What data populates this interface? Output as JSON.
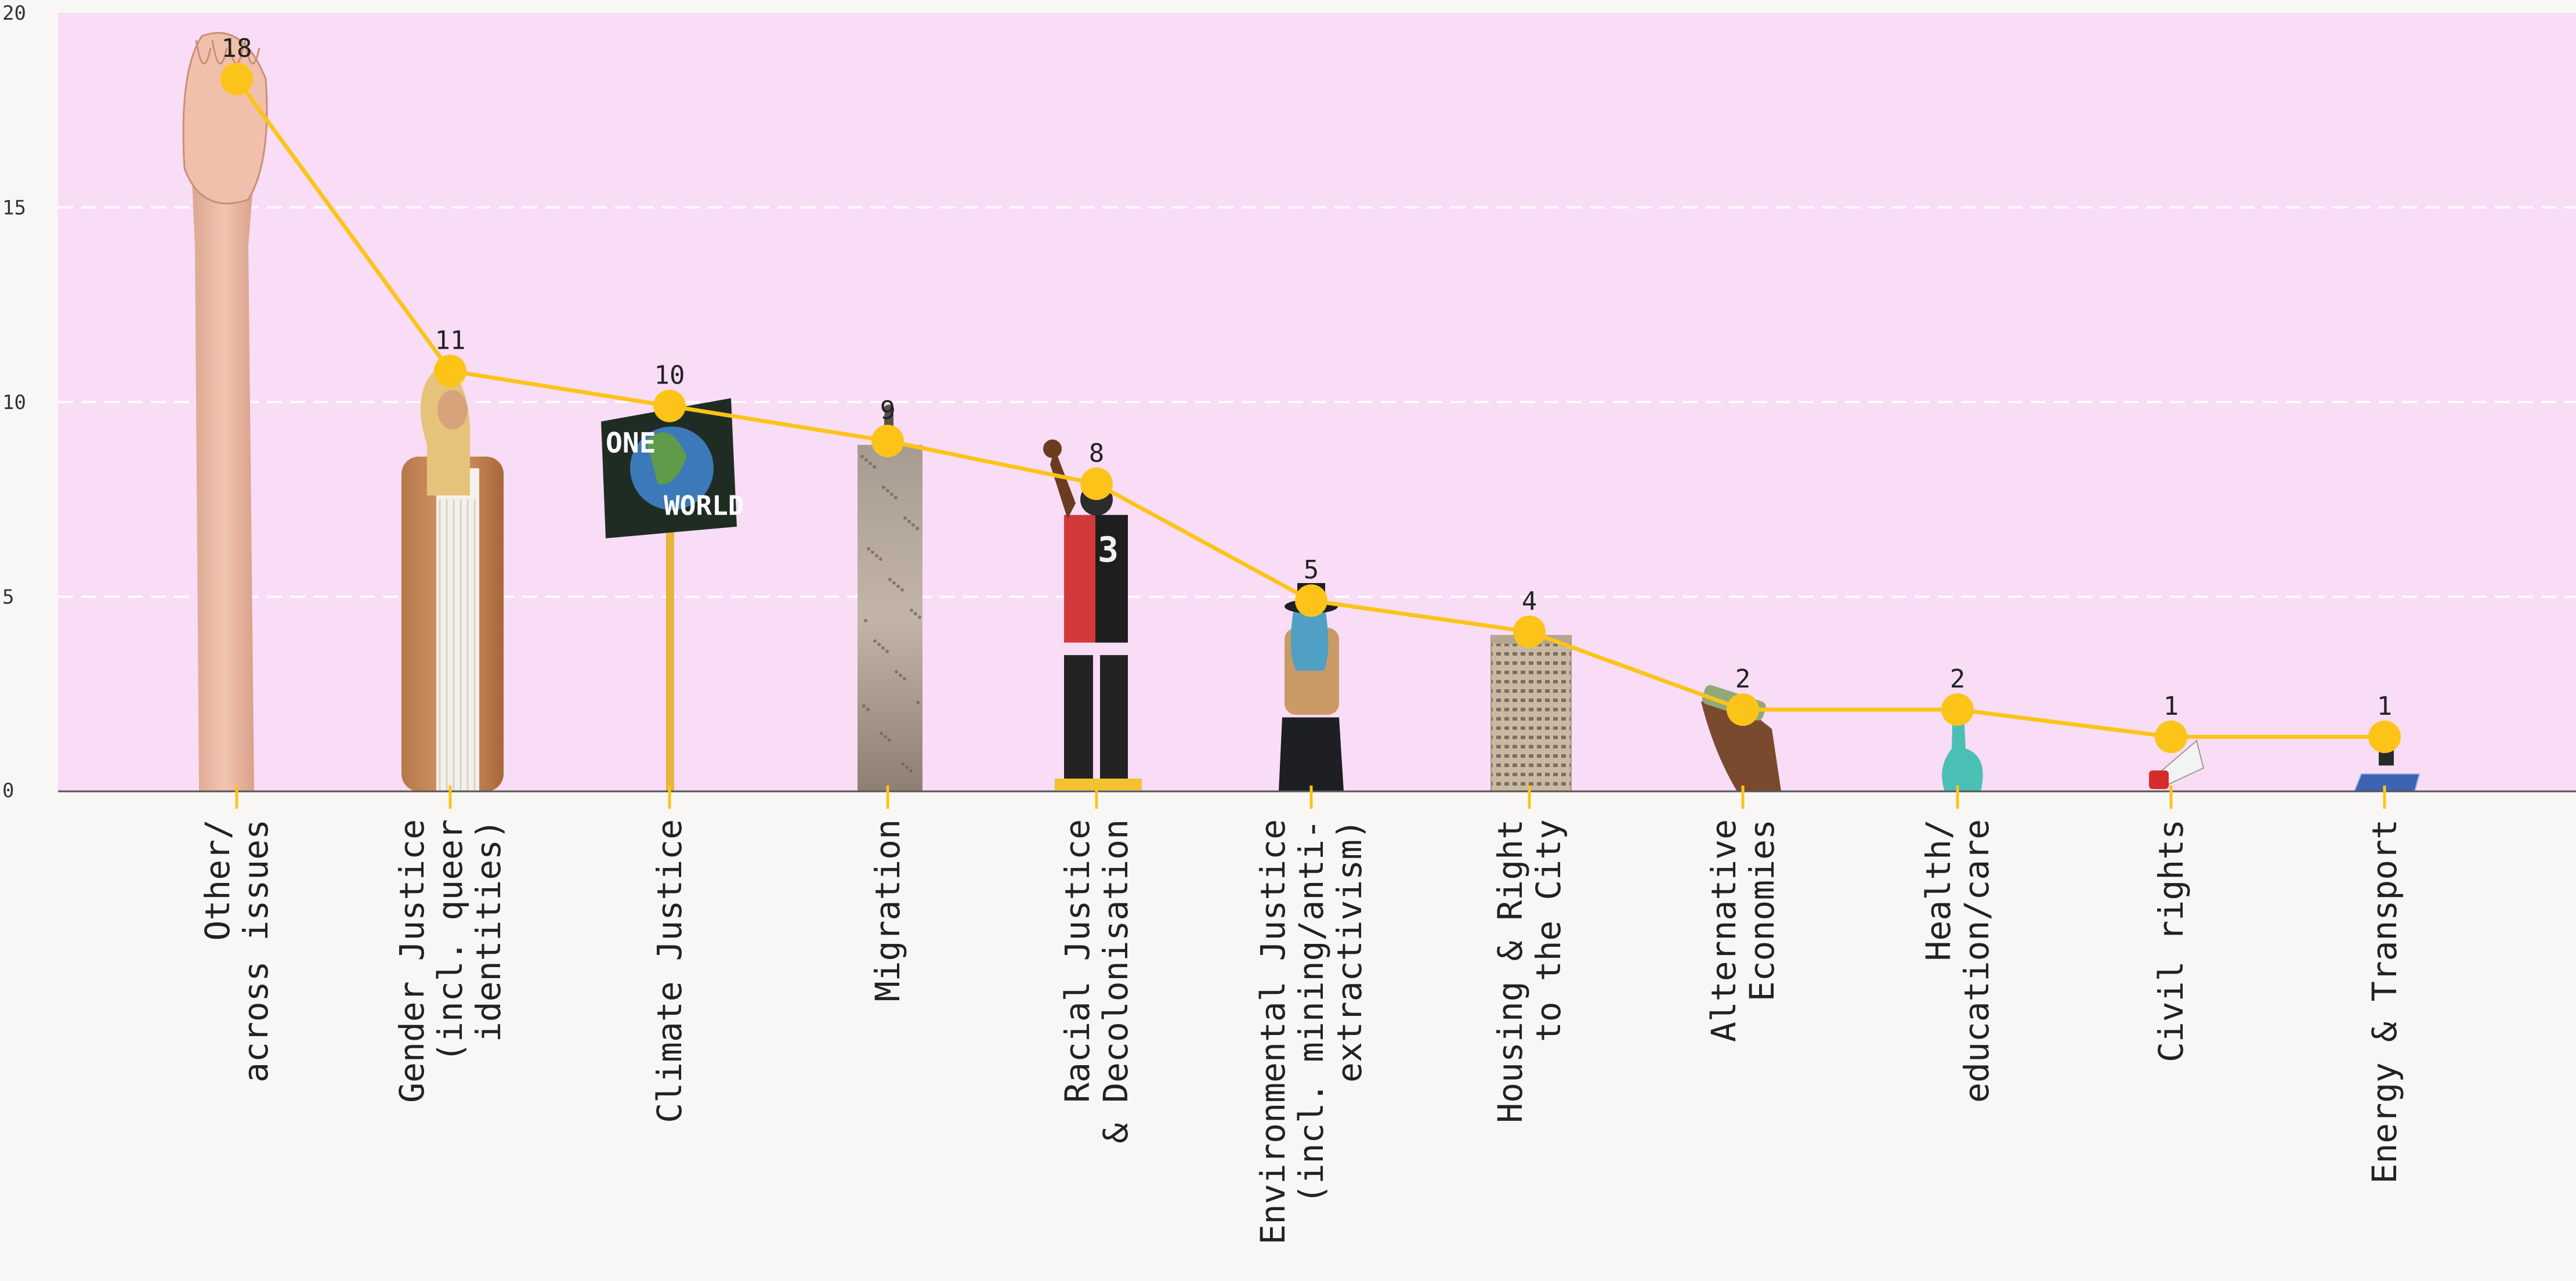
{
  "chart_data": {
    "type": "line",
    "title": "",
    "xlabel": "",
    "ylabel": "",
    "ylim": [
      0,
      20
    ],
    "yticks": [
      "0",
      "5",
      "10",
      "15",
      "20"
    ],
    "grid": true,
    "categories": [
      [
        "Other/",
        "across issues"
      ],
      [
        "Gender Justice",
        "(incl. queer",
        "identities)"
      ],
      [
        "Climate Justice"
      ],
      [
        "Migration"
      ],
      [
        "Racial Justice",
        "& Decolonisation"
      ],
      [
        "Environmental Justice",
        "(incl. mining/anti-",
        "extractivism)"
      ],
      [
        "Housing & Right",
        "to the City"
      ],
      [
        "Alternative",
        "Economies"
      ],
      [
        "Health/",
        "education/care"
      ],
      [
        "Civil rights"
      ],
      [
        "Energy & Transport"
      ]
    ],
    "values": [
      18,
      11,
      10,
      9,
      8,
      5,
      4,
      2,
      2,
      1,
      1
    ],
    "marker_values": [
      18.3,
      10.8,
      9.9,
      9.0,
      7.9,
      4.9,
      4.1,
      2.1,
      2.1,
      1.4,
      1.4
    ],
    "value_labels": [
      "18",
      "11",
      "10",
      "9",
      "8",
      "5",
      "4",
      "2",
      "2",
      "1",
      "1"
    ],
    "illustrations": [
      "raised-fist-arm",
      "drag-performer",
      "one-world-sign",
      "tower-with-figure",
      "protester-raised-fist",
      "protester-blue-hair",
      "apartment-tower",
      "hand-with-cash",
      "gloved-hand-pointing",
      "megaphone",
      "person-on-solar-panel"
    ],
    "sign_text": [
      "ONE",
      "WORLD"
    ],
    "colors": {
      "plot_background": "#f9dcf5",
      "page_background": "#f8f7f5",
      "line": "#fcc419",
      "marker": "#fcc419",
      "grid": "#ffffff",
      "axis": "#555555",
      "text": "#222222"
    }
  }
}
